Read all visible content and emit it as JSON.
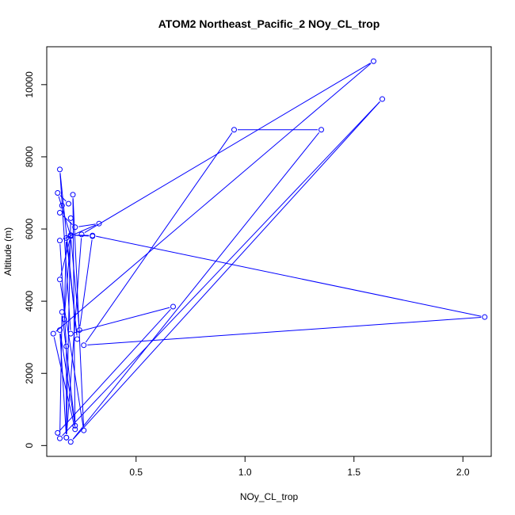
{
  "chart_data": {
    "type": "line",
    "title": "ATOM2 Northeast_Pacific_2 NOy_CL_trop",
    "xlabel": "NOy_CL_trop",
    "ylabel": "Altitude (m)",
    "xlim": [
      0.09,
      2.13
    ],
    "ylim": [
      -300,
      11050
    ],
    "x_ticks": [
      0.5,
      1.0,
      1.5,
      2.0
    ],
    "x_tick_labels": [
      "0.5",
      "1.0",
      "1.5",
      "2.0"
    ],
    "y_ticks": [
      0,
      2000,
      4000,
      6000,
      8000,
      10000
    ],
    "y_tick_labels": [
      "0",
      "2000",
      "4000",
      "6000",
      "8000",
      "10000"
    ],
    "grid": false,
    "series": [
      {
        "color": "#0000ff",
        "marker": "open-circle",
        "x": [
          0.14,
          0.67,
          0.2,
          0.15,
          0.23,
          0.18,
          0.17,
          0.2,
          0.14,
          0.19,
          0.16,
          0.15,
          0.22,
          0.33,
          0.15,
          0.18,
          0.18,
          0.25,
          1.59,
          0.12,
          0.22,
          0.21,
          0.26,
          0.15,
          0.2,
          0.24,
          0.3,
          0.2,
          0.3,
          2.1,
          0.26,
          0.95,
          1.35,
          0.2,
          1.63,
          0.15,
          0.16,
          0.22,
          0.15,
          0.18,
          0.2
        ],
        "y": [
          350,
          3850,
          3100,
          7650,
          2950,
          5750,
          3500,
          5800,
          7000,
          6700,
          6650,
          6450,
          6050,
          6150,
          5680,
          2750,
          220,
          5850,
          10650,
          3100,
          450,
          6950,
          420,
          4600,
          5800,
          3200,
          5800,
          5830,
          5820,
          3560,
          2780,
          8750,
          8750,
          100,
          9600,
          200,
          3700,
          550,
          3200,
          220,
          6300
        ]
      }
    ]
  }
}
